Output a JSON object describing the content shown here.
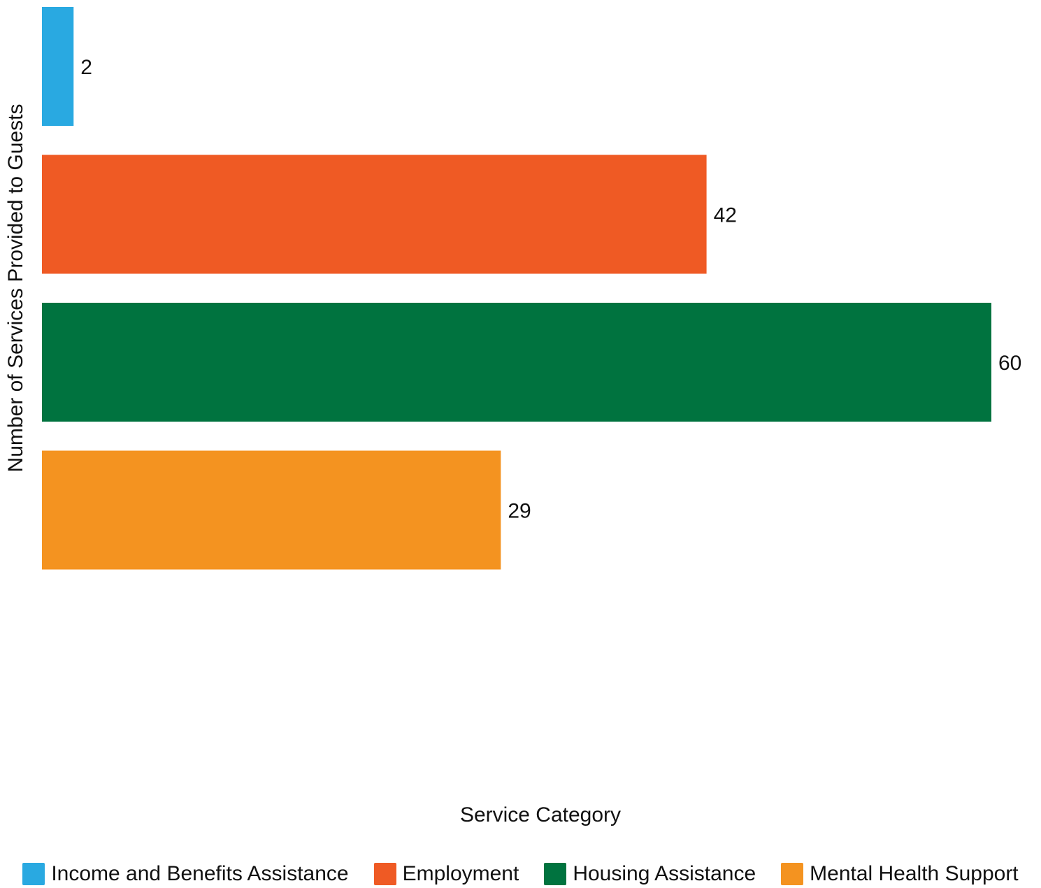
{
  "chart_data": {
    "type": "bar",
    "orientation": "horizontal",
    "title": "",
    "xlabel": "Service Category",
    "ylabel": "Number of Services Provided to Guests",
    "xlim": [
      0,
      60
    ],
    "grid": false,
    "legend_position": "bottom",
    "categories": [
      "Income and Benefits Assistance",
      "Employment",
      "Housing Assistance",
      "Mental Health Support"
    ],
    "values": [
      2,
      42,
      60,
      29
    ],
    "data_labels": [
      "2",
      "42",
      "60",
      "29"
    ],
    "colors": [
      "#29a9e1",
      "#ef5a24",
      "#00733f",
      "#f49320"
    ]
  },
  "legend": {
    "items": [
      {
        "label": "Income and Benefits Assistance",
        "color": "#29a9e1"
      },
      {
        "label": "Employment",
        "color": "#ef5a24"
      },
      {
        "label": "Housing Assistance",
        "color": "#00733f"
      },
      {
        "label": "Mental Health Support",
        "color": "#f49320"
      }
    ]
  }
}
